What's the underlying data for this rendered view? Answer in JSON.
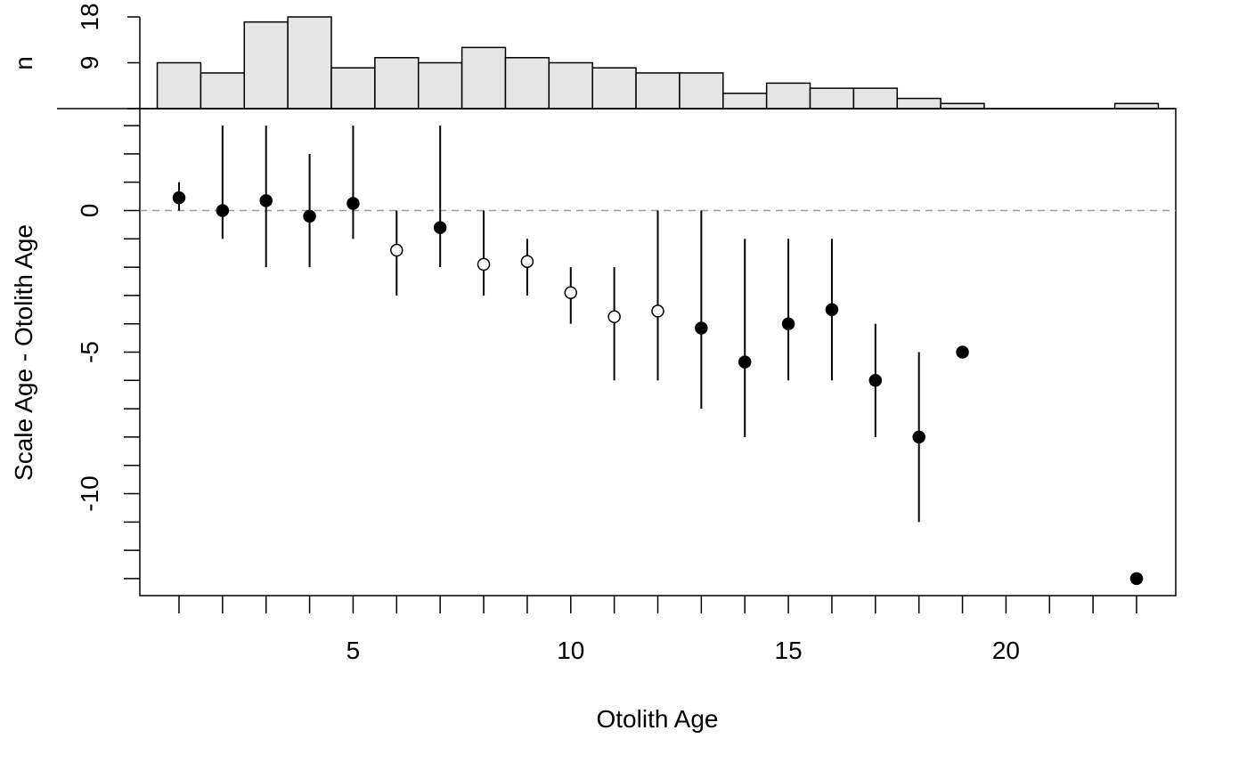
{
  "chart_data": {
    "type": "scatter",
    "title": "",
    "xlabel": "Otolith Age",
    "ylabel": "Scale Age - Otolith Age",
    "xlim": [
      0.1,
      23.9
    ],
    "ylim": [
      -13.6,
      3.6
    ],
    "x_ticks": [
      1,
      2,
      3,
      4,
      5,
      6,
      7,
      8,
      9,
      10,
      11,
      12,
      13,
      14,
      15,
      16,
      17,
      18,
      19,
      20,
      21,
      22,
      23
    ],
    "x_tick_labels": [
      {
        "value": 5,
        "label": "5"
      },
      {
        "value": 10,
        "label": "10"
      },
      {
        "value": 15,
        "label": "15"
      },
      {
        "value": 20,
        "label": "20"
      }
    ],
    "y_ticks": [
      -13,
      -12,
      -11,
      -10,
      -9,
      -8,
      -7,
      -6,
      -5,
      -4,
      -3,
      -2,
      -1,
      0,
      1,
      2,
      3
    ],
    "y_tick_labels": [
      {
        "value": 0,
        "label": "0"
      },
      {
        "value": -5,
        "label": "-5"
      },
      {
        "value": -10,
        "label": "-10"
      }
    ],
    "reference_line": {
      "y": 0,
      "style": "dashed",
      "color": "#999999"
    },
    "grid": false,
    "points": [
      {
        "x": 1,
        "mean": 0.45,
        "min": 0,
        "max": 1,
        "significant": true
      },
      {
        "x": 2,
        "mean": 0.0,
        "min": -1,
        "max": 3,
        "significant": true
      },
      {
        "x": 3,
        "mean": 0.35,
        "min": -2,
        "max": 3,
        "significant": true
      },
      {
        "x": 4,
        "mean": -0.2,
        "min": -2,
        "max": 2,
        "significant": true
      },
      {
        "x": 5,
        "mean": 0.25,
        "min": -1,
        "max": 3,
        "significant": true
      },
      {
        "x": 6,
        "mean": -1.4,
        "min": -3,
        "max": 0,
        "significant": false
      },
      {
        "x": 7,
        "mean": -0.6,
        "min": -2,
        "max": 3,
        "significant": true
      },
      {
        "x": 8,
        "mean": -1.9,
        "min": -3,
        "max": 0,
        "significant": false
      },
      {
        "x": 9,
        "mean": -1.8,
        "min": -3,
        "max": -1,
        "significant": false
      },
      {
        "x": 10,
        "mean": -2.9,
        "min": -4,
        "max": -2,
        "significant": false
      },
      {
        "x": 11,
        "mean": -3.75,
        "min": -6,
        "max": -2,
        "significant": false
      },
      {
        "x": 12,
        "mean": -3.55,
        "min": -6,
        "max": 0,
        "significant": false
      },
      {
        "x": 13,
        "mean": -4.15,
        "min": -7,
        "max": 0,
        "significant": true
      },
      {
        "x": 14,
        "mean": -5.35,
        "min": -8,
        "max": -1,
        "significant": true
      },
      {
        "x": 15,
        "mean": -4.0,
        "min": -6,
        "max": -1,
        "significant": true
      },
      {
        "x": 16,
        "mean": -3.5,
        "min": -6,
        "max": -1,
        "significant": true
      },
      {
        "x": 17,
        "mean": -6.0,
        "min": -8,
        "max": -4,
        "significant": true
      },
      {
        "x": 18,
        "mean": -8.0,
        "min": -11,
        "max": -5,
        "significant": true
      },
      {
        "x": 19,
        "mean": -5.0,
        "min": -5,
        "max": -5,
        "significant": true
      },
      {
        "x": 23,
        "mean": -13.0,
        "min": -13,
        "max": -13,
        "significant": true
      }
    ],
    "histogram": {
      "ylabel": "n",
      "y_max": 18,
      "y_tick_labels": [
        {
          "value": 9,
          "label": "9"
        },
        {
          "value": 18,
          "label": "18"
        }
      ],
      "bins": [
        {
          "x": 1,
          "n": 9
        },
        {
          "x": 2,
          "n": 7
        },
        {
          "x": 3,
          "n": 17
        },
        {
          "x": 4,
          "n": 18
        },
        {
          "x": 5,
          "n": 8
        },
        {
          "x": 6,
          "n": 10
        },
        {
          "x": 7,
          "n": 9
        },
        {
          "x": 8,
          "n": 12
        },
        {
          "x": 9,
          "n": 10
        },
        {
          "x": 10,
          "n": 9
        },
        {
          "x": 11,
          "n": 8
        },
        {
          "x": 12,
          "n": 7
        },
        {
          "x": 13,
          "n": 7
        },
        {
          "x": 14,
          "n": 3
        },
        {
          "x": 15,
          "n": 5
        },
        {
          "x": 16,
          "n": 4
        },
        {
          "x": 17,
          "n": 4
        },
        {
          "x": 18,
          "n": 2
        },
        {
          "x": 19,
          "n": 1
        },
        {
          "x": 23,
          "n": 1
        }
      ]
    },
    "colors": {
      "axis": "#000000",
      "bar_fill": "#e5e5e5",
      "bar_stroke": "#000000",
      "point_filled": "#000000",
      "point_open": "#ffffff",
      "refline": "#999999"
    }
  }
}
